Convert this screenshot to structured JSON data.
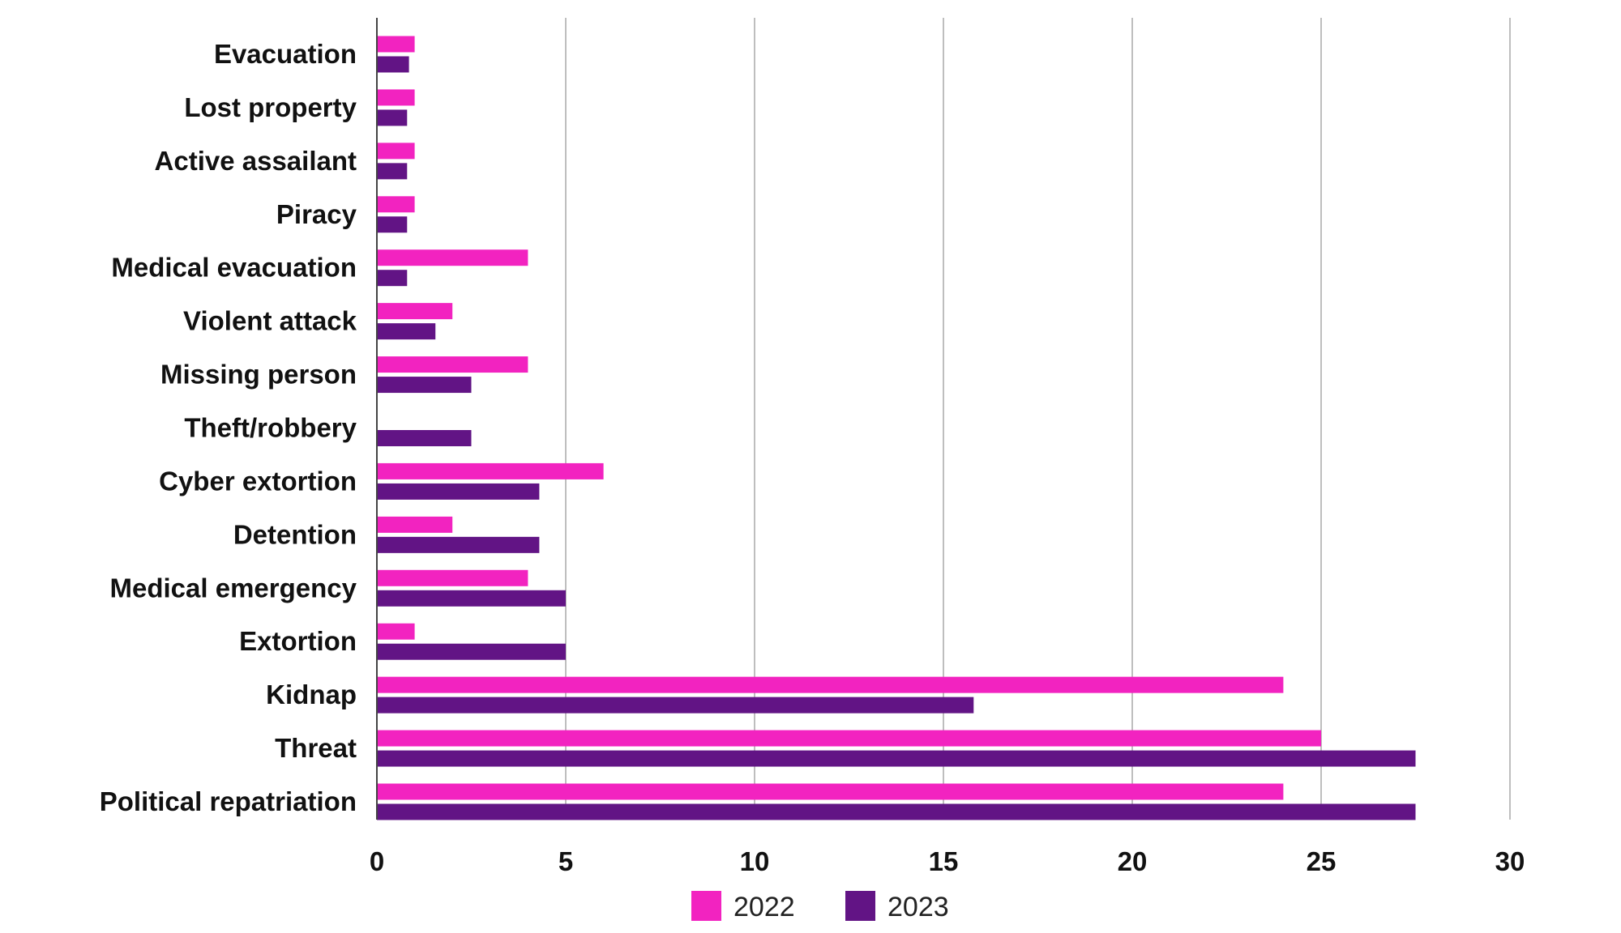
{
  "chart_data": {
    "type": "bar",
    "orientation": "horizontal",
    "categories": [
      "Evacuation",
      "Lost property",
      "Active assailant",
      "Piracy",
      "Medical evacuation",
      "Violent attack",
      "Missing person",
      "Theft/robbery",
      "Cyber extortion",
      "Detention",
      "Medical emergency",
      "Extortion",
      "Kidnap",
      "Threat",
      "Political repatriation"
    ],
    "series": [
      {
        "name": "2022",
        "color": "#f223c0",
        "values": [
          1,
          1,
          1,
          1,
          4,
          2,
          4,
          0,
          6,
          2,
          4,
          1,
          24,
          25,
          24
        ]
      },
      {
        "name": "2023",
        "color": "#621485",
        "values": [
          0.85,
          0.8,
          0.8,
          0.8,
          0.8,
          1.55,
          2.5,
          2.5,
          4.3,
          4.3,
          5,
          5,
          15.8,
          27.5,
          27.5
        ]
      }
    ],
    "x_ticks": [
      "0",
      "5",
      "10",
      "15",
      "20",
      "25",
      "30"
    ],
    "xlim": [
      0,
      30
    ],
    "grid": "vertical",
    "legend_position": "bottom"
  }
}
